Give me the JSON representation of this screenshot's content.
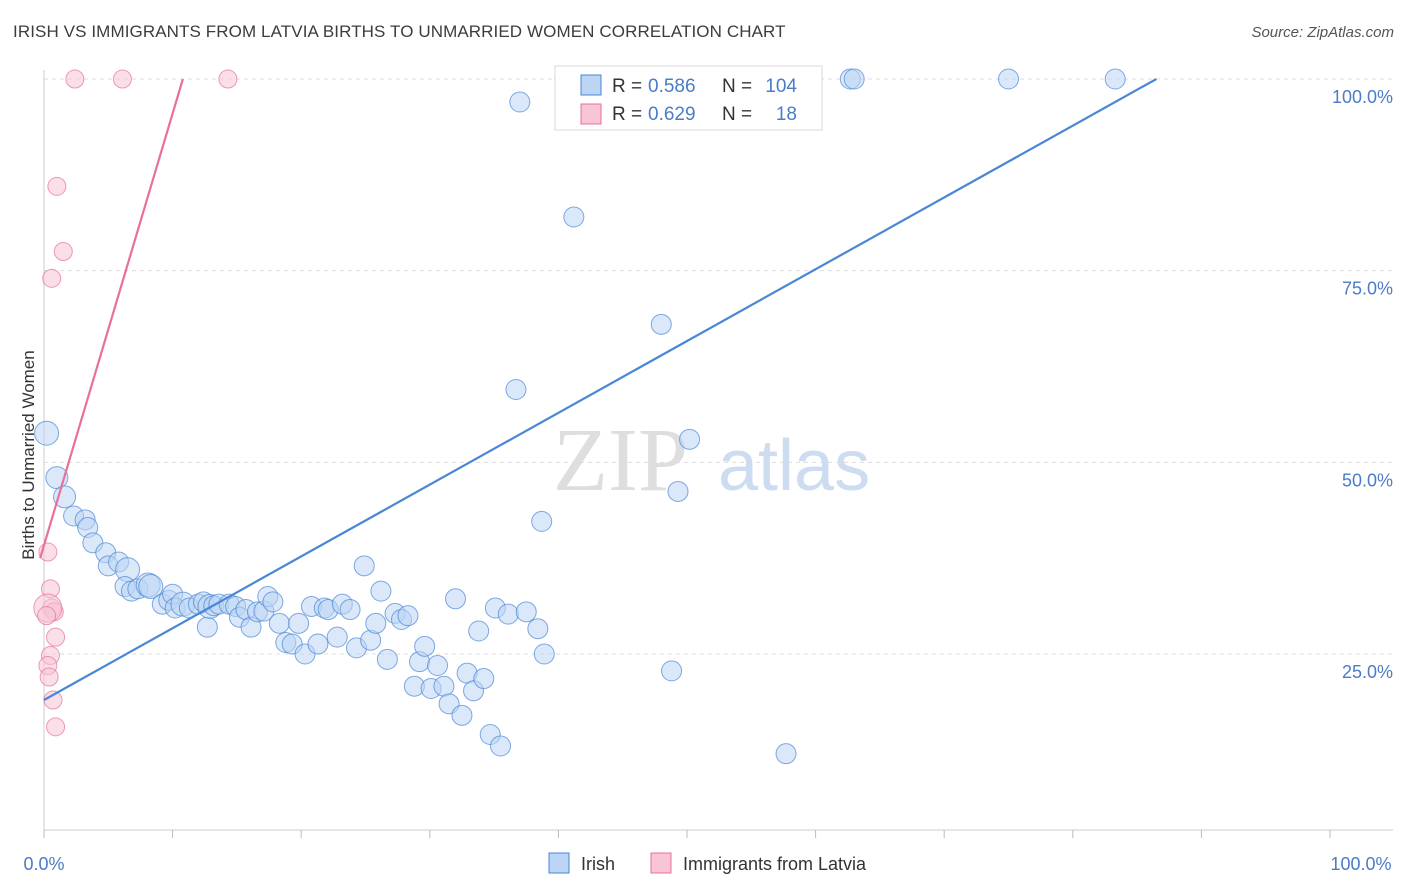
{
  "header": {
    "title": "IRISH VS IMMIGRANTS FROM LATVIA BIRTHS TO UNMARRIED WOMEN CORRELATION CHART",
    "source": "Source: ZipAtlas.com"
  },
  "watermark": {
    "zip": "ZIP",
    "atlas": "atlas"
  },
  "colors": {
    "irish": "#4a86d6",
    "irish_fill": "#bcd5f4",
    "latvia": "#e8709a",
    "latvia_fill": "#f7c5d5",
    "tick_text": "#4a7cc7",
    "grid": "#dddddd"
  },
  "chart_data": {
    "type": "scatter",
    "title": "IRISH VS IMMIGRANTS FROM LATVIA BIRTHS TO UNMARRIED WOMEN CORRELATION CHART",
    "xlabel": "",
    "ylabel": "Births to Unmarried Women",
    "xlim": [
      0,
      100
    ],
    "ylim": [
      0,
      100
    ],
    "x_ticks": [
      "0.0%",
      "100.0%"
    ],
    "y_ticks": [
      {
        "value": 25,
        "label": "25.0%"
      },
      {
        "value": 50,
        "label": "50.0%"
      },
      {
        "value": 75,
        "label": "75.0%"
      },
      {
        "value": 100,
        "label": "100.0%"
      }
    ],
    "legend_top": [
      {
        "r_label": "R = ",
        "r_value": "0.586",
        "n_label": "N = ",
        "n_value": "104"
      },
      {
        "r_label": "R = ",
        "r_value": "0.629",
        "n_label": "N = ",
        "n_value": "18"
      }
    ],
    "series": [
      {
        "name": "Irish",
        "trend": {
          "x0": 0,
          "y0": 19,
          "x1": 86.5,
          "y1": 100
        },
        "points": [
          [
            0.2,
            53.8
          ],
          [
            1,
            48
          ],
          [
            1.6,
            45.5
          ],
          [
            2.3,
            43
          ],
          [
            3.2,
            42.5
          ],
          [
            3.4,
            41.5
          ],
          [
            3.8,
            39.5
          ],
          [
            4.8,
            38.2
          ],
          [
            5,
            36.5
          ],
          [
            5.8,
            37
          ],
          [
            6.5,
            36
          ],
          [
            6.3,
            33.8
          ],
          [
            6.8,
            33.2
          ],
          [
            7.3,
            33.5
          ],
          [
            8.1,
            34
          ],
          [
            8.3,
            33.8
          ],
          [
            9.2,
            31.5
          ],
          [
            9.7,
            32
          ],
          [
            10,
            32.8
          ],
          [
            10.2,
            31
          ],
          [
            10.8,
            31.5
          ],
          [
            11.3,
            31
          ],
          [
            12,
            31.5
          ],
          [
            12.4,
            31.8
          ],
          [
            12.7,
            28.5
          ],
          [
            12.9,
            31.2
          ],
          [
            13.2,
            31.3
          ],
          [
            13.6,
            31.5
          ],
          [
            14.4,
            31.5
          ],
          [
            14.9,
            31.2
          ],
          [
            15.2,
            29.8
          ],
          [
            15.7,
            30.8
          ],
          [
            16.1,
            28.5
          ],
          [
            16.6,
            30.5
          ],
          [
            17.1,
            30.6
          ],
          [
            17.4,
            32.5
          ],
          [
            17.8,
            31.8
          ],
          [
            18.3,
            29
          ],
          [
            18.8,
            26.5
          ],
          [
            19.3,
            26.3
          ],
          [
            19.8,
            29
          ],
          [
            20.3,
            25
          ],
          [
            20.8,
            31.2
          ],
          [
            21.3,
            26.3
          ],
          [
            21.8,
            31
          ],
          [
            22.1,
            30.8
          ],
          [
            22.8,
            27.2
          ],
          [
            23.2,
            31.5
          ],
          [
            23.8,
            30.8
          ],
          [
            24.3,
            25.8
          ],
          [
            24.9,
            36.5
          ],
          [
            25.4,
            26.8
          ],
          [
            25.8,
            29
          ],
          [
            26.2,
            33.2
          ],
          [
            26.7,
            24.3
          ],
          [
            27.3,
            30.3
          ],
          [
            27.8,
            29.5
          ],
          [
            28.3,
            30
          ],
          [
            28.8,
            20.8
          ],
          [
            29.2,
            24
          ],
          [
            29.6,
            26
          ],
          [
            30.1,
            20.5
          ],
          [
            30.6,
            23.5
          ],
          [
            31.1,
            20.8
          ],
          [
            31.5,
            18.5
          ],
          [
            32,
            32.2
          ],
          [
            32.5,
            17
          ],
          [
            32.9,
            22.5
          ],
          [
            33.4,
            20.2
          ],
          [
            33.8,
            28
          ],
          [
            34.2,
            21.8
          ],
          [
            34.7,
            14.5
          ],
          [
            35.1,
            31
          ],
          [
            35.5,
            13
          ],
          [
            36.1,
            30.2
          ],
          [
            37.5,
            30.5
          ],
          [
            38.4,
            28.3
          ],
          [
            38.7,
            42.3
          ],
          [
            38.9,
            25
          ],
          [
            41.2,
            82
          ],
          [
            37,
            97
          ],
          [
            36.7,
            59.5
          ],
          [
            48,
            68
          ],
          [
            49.3,
            46.2
          ],
          [
            50.2,
            53
          ],
          [
            48.8,
            22.8
          ],
          [
            57.7,
            12
          ],
          [
            42,
            100
          ],
          [
            42.8,
            100
          ],
          [
            43,
            100
          ],
          [
            44.5,
            100
          ],
          [
            45.3,
            100
          ],
          [
            46.5,
            100
          ],
          [
            48.3,
            100
          ],
          [
            52.3,
            100
          ],
          [
            55.7,
            100
          ],
          [
            59.5,
            100
          ],
          [
            62.7,
            100
          ],
          [
            63,
            100
          ],
          [
            75,
            100
          ],
          [
            83.3,
            100
          ],
          [
            40.5,
            100
          ],
          [
            50,
            100
          ],
          [
            57,
            100
          ]
        ],
        "sizes": [
          12,
          11,
          11,
          10,
          10,
          10,
          10,
          10,
          10,
          10,
          12,
          10,
          10,
          10,
          12,
          12,
          10,
          10,
          10,
          10,
          12,
          10,
          10,
          10,
          10,
          12,
          10,
          10,
          10,
          10,
          10,
          10,
          10,
          10,
          10,
          10,
          10,
          10,
          10,
          10,
          10,
          10,
          10,
          10,
          10,
          10,
          10,
          10,
          10,
          10,
          10,
          10,
          10,
          10,
          10,
          10,
          10,
          10,
          10,
          10,
          10,
          10,
          10,
          10,
          10,
          10,
          10,
          10,
          10,
          10,
          10,
          10,
          10,
          10,
          10,
          10,
          10,
          10,
          10,
          10,
          10,
          10,
          10,
          10,
          10,
          10,
          10,
          10,
          10,
          10,
          10,
          10,
          10,
          10,
          10,
          10,
          10,
          10,
          10,
          10,
          10,
          10,
          10,
          10
        ]
      },
      {
        "name": "Immigrants from Latvia",
        "trend": {
          "x0": -0.3,
          "y0": 37.5,
          "x1": 10.8,
          "y1": 100
        },
        "points": [
          [
            2.4,
            100
          ],
          [
            6.1,
            100
          ],
          [
            14.3,
            100
          ],
          [
            1,
            86
          ],
          [
            1.5,
            77.5
          ],
          [
            0.6,
            74
          ],
          [
            0.3,
            38.3
          ],
          [
            0.5,
            33.5
          ],
          [
            0.6,
            31
          ],
          [
            0.8,
            30.5
          ],
          [
            0.3,
            31
          ],
          [
            0.2,
            30
          ],
          [
            0.9,
            27.2
          ],
          [
            0.5,
            24.8
          ],
          [
            0.3,
            23.5
          ],
          [
            0.4,
            22
          ],
          [
            0.7,
            19
          ],
          [
            0.9,
            15.5
          ]
        ],
        "sizes": [
          9,
          9,
          9,
          9,
          9,
          9,
          9,
          9,
          9,
          9,
          14,
          9,
          9,
          9,
          9,
          9,
          9,
          9
        ]
      }
    ],
    "legend_bottom": [
      "Irish",
      "Immigrants from Latvia"
    ],
    "grid": true
  }
}
